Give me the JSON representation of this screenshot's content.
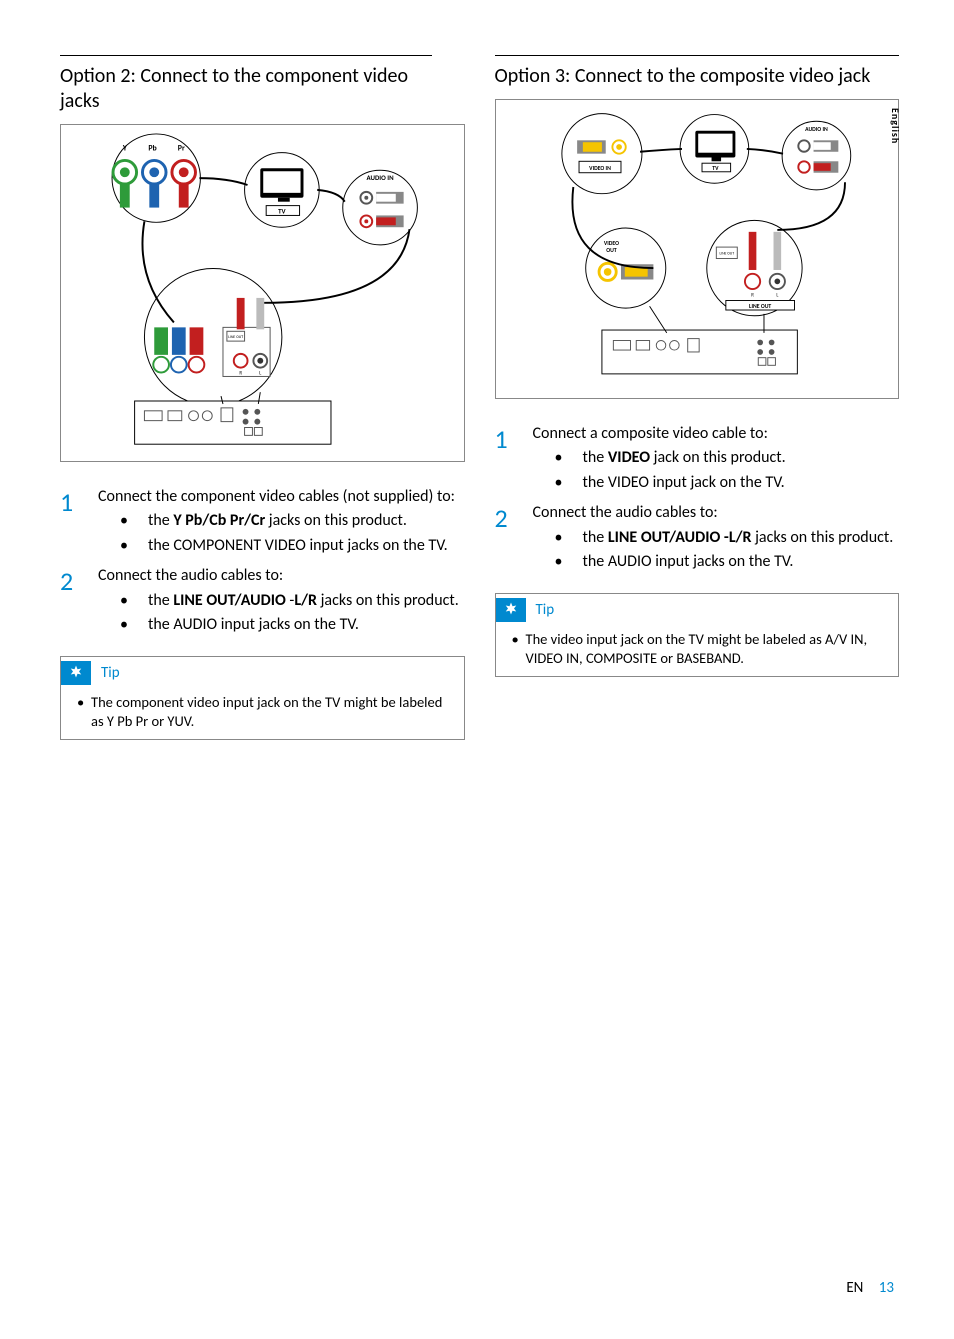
{
  "sideTab": "English",
  "footer": {
    "lang": "EN",
    "page": "13"
  },
  "tipLabel": "Tip",
  "colors": {
    "accent": "#0089cf",
    "border": "#888888",
    "text": "#000000"
  },
  "left": {
    "title": "Option 2: Connect to the component video jacks",
    "diagram": {
      "type": "wiring-diagram",
      "heightPx": 338,
      "tvLabel": "TV",
      "audioInLabel": "AUDIO IN",
      "componentLabels": [
        "Y",
        "Pb",
        "Pr"
      ],
      "componentColors": [
        "#2e9b3a",
        "#1e63b0",
        "#c21f1f"
      ],
      "lineOutLabel": "LINE OUT",
      "audioColors": {
        "R": "#c21f1f",
        "L": "#ffffff"
      }
    },
    "steps": [
      {
        "intro": "Connect the component video cables (not supplied) to:",
        "items": [
          "the <b>Y Pb/Cb Pr/Cr</b> jacks on this product.",
          "the COMPONENT VIDEO input jacks on the TV."
        ]
      },
      {
        "intro": "Connect the audio cables to:",
        "items": [
          "the <b>LINE OUT/AUDIO</b>  -<b>L/R</b> jacks on this product.",
          "the AUDIO input jacks on the TV."
        ]
      }
    ],
    "tip": "The component video input jack on the TV might be labeled as Y Pb Pr or YUV."
  },
  "right": {
    "title": "Option 3: Connect to the composite video jack",
    "diagram": {
      "type": "wiring-diagram",
      "heightPx": 300,
      "tvLabel": "TV",
      "audioInLabel": "AUDIO IN",
      "videoInLabel": "VIDEO IN",
      "videoOutLabel": "VIDEO OUT",
      "lineOutLabel": "LINE OUT",
      "videoColor": "#f5c400",
      "audioColors": {
        "R": "#c21f1f",
        "L": "#ffffff"
      }
    },
    "steps": [
      {
        "intro": "Connect a composite video cable to:",
        "items": [
          "the <b>VIDEO</b> jack on this product.",
          "the VIDEO input jack on the TV."
        ]
      },
      {
        "intro": "Connect the audio cables to:",
        "items": [
          "the <b>LINE OUT/AUDIO -L/R</b> jacks on this product.",
          "the AUDIO input jacks on the TV."
        ]
      }
    ],
    "tip": "The video input jack on the TV might be labeled as A/V IN, VIDEO IN, COMPOSITE or BASEBAND."
  }
}
